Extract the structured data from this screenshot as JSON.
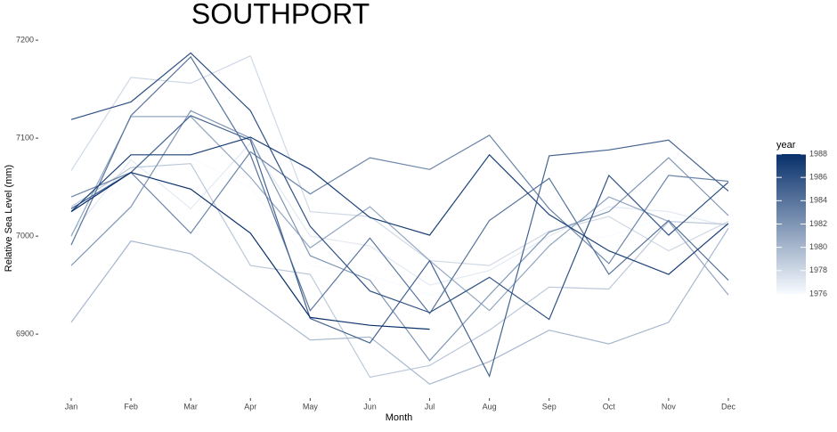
{
  "chart_data": {
    "type": "line",
    "title": "SOUTHPORT",
    "x_label": "Month",
    "y_label": "Relative Sea Level (mm)",
    "categories": [
      "Jan",
      "Feb",
      "Mar",
      "Apr",
      "May",
      "Jun",
      "Jul",
      "Aug",
      "Sep",
      "Oct",
      "Nov",
      "Dec"
    ],
    "ylim": [
      6841,
      7211
    ],
    "yticks": [
      6900,
      7000,
      7100,
      7200
    ],
    "grid": false,
    "colorbar": {
      "title": "year",
      "lim": [
        1976,
        1988
      ],
      "ticks": [
        1976,
        1978,
        1980,
        1982,
        1984,
        1986,
        1988
      ],
      "low_color": "#f7fbff",
      "high_color": "#08306b"
    },
    "series": [
      {
        "year": 1976,
        "values": [
          7010,
          7060,
          7080,
          7050,
          6970,
          6960,
          6940,
          6950,
          6995,
          7000,
          7020,
          7012
        ]
      },
      {
        "year": 1977,
        "values": [
          7002,
          7078,
          7028,
          7095,
          7000,
          6990,
          6950,
          6965,
          7000,
          7030,
          7025,
          7010
        ]
      },
      {
        "year": 1978,
        "values": [
          7067,
          7162,
          7156,
          7184,
          7025,
          7020,
          6975,
          6970,
          7005,
          7020,
          6985,
          7015
        ]
      },
      {
        "year": 1979,
        "values": [
          7030,
          7070,
          7074,
          6970,
          6961,
          6856,
          6868,
          6904,
          6948,
          6946,
          7015,
          7012
        ]
      },
      {
        "year": 1980,
        "values": [
          6912,
          6995,
          6982,
          6938,
          6894,
          6897,
          6849,
          6872,
          6904,
          6890,
          6912,
          7008
        ]
      },
      {
        "year": 1981,
        "values": [
          7000,
          7122,
          7122,
          7060,
          6988,
          7030,
          6975,
          6924,
          6990,
          7040,
          7015,
          6940
        ]
      },
      {
        "year": 1982,
        "values": [
          6970,
          7030,
          7128,
          7100,
          6980,
          6955,
          6873,
          6940,
          7004,
          7025,
          7080,
          7021
        ]
      },
      {
        "year": 1983,
        "values": [
          7040,
          7065,
          7003,
          7086,
          7043,
          7080,
          7068,
          7103,
          7028,
          6972,
          7062,
          7056
        ]
      },
      {
        "year": 1984,
        "values": [
          6991,
          7123,
          7183,
          7083,
          6924,
          6998,
          6921,
          7016,
          7059,
          6961,
          7016,
          6955
        ]
      },
      {
        "year": 1985,
        "values": [
          7028,
          7065,
          7123,
          7098,
          6916,
          6891,
          6975,
          6857,
          7082,
          7088,
          7098,
          7046
        ]
      },
      {
        "year": 1986,
        "values": [
          7119,
          7137,
          7187,
          7128,
          7010,
          6944,
          6922,
          6958,
          6915,
          7062,
          7001,
          7055
        ]
      },
      {
        "year": 1987,
        "values": [
          7025,
          7083,
          7083,
          7101,
          7068,
          7019,
          7001,
          7083,
          7022,
          6985,
          6961,
          7013
        ]
      },
      {
        "year": 1988,
        "values": [
          7025,
          7065,
          7048,
          7003,
          6917,
          6909,
          6905,
          null,
          null,
          null,
          null,
          null
        ]
      }
    ]
  }
}
